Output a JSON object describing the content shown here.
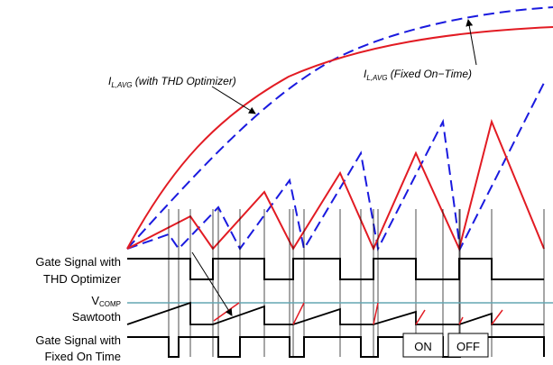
{
  "colors": {
    "optimizer": "#e21b23",
    "fixed": "#1a1adf",
    "vcomp_line": "#64a6b2",
    "black": "#000000"
  },
  "annotations": {
    "avg_optimizer": {
      "main": "I",
      "sub": "L,AVG",
      "rest": " (with THD Optimizer)"
    },
    "avg_fixed": {
      "main": "I",
      "sub": "L,AVG",
      "rest": " (Fixed On−Time)"
    }
  },
  "rows": {
    "gate_optimizer": [
      "Gate Signal with",
      "THD Optimizer"
    ],
    "vcomp": {
      "main": "V",
      "sub": "COMP"
    },
    "sawtooth": "Sawtooth",
    "gate_fixed": [
      "Gate Signal with",
      "Fixed On Time"
    ]
  },
  "boxes": {
    "on": "ON",
    "off": "OFF"
  },
  "line_styles": {
    "optimizer": "solid",
    "fixed": "dashed"
  }
}
